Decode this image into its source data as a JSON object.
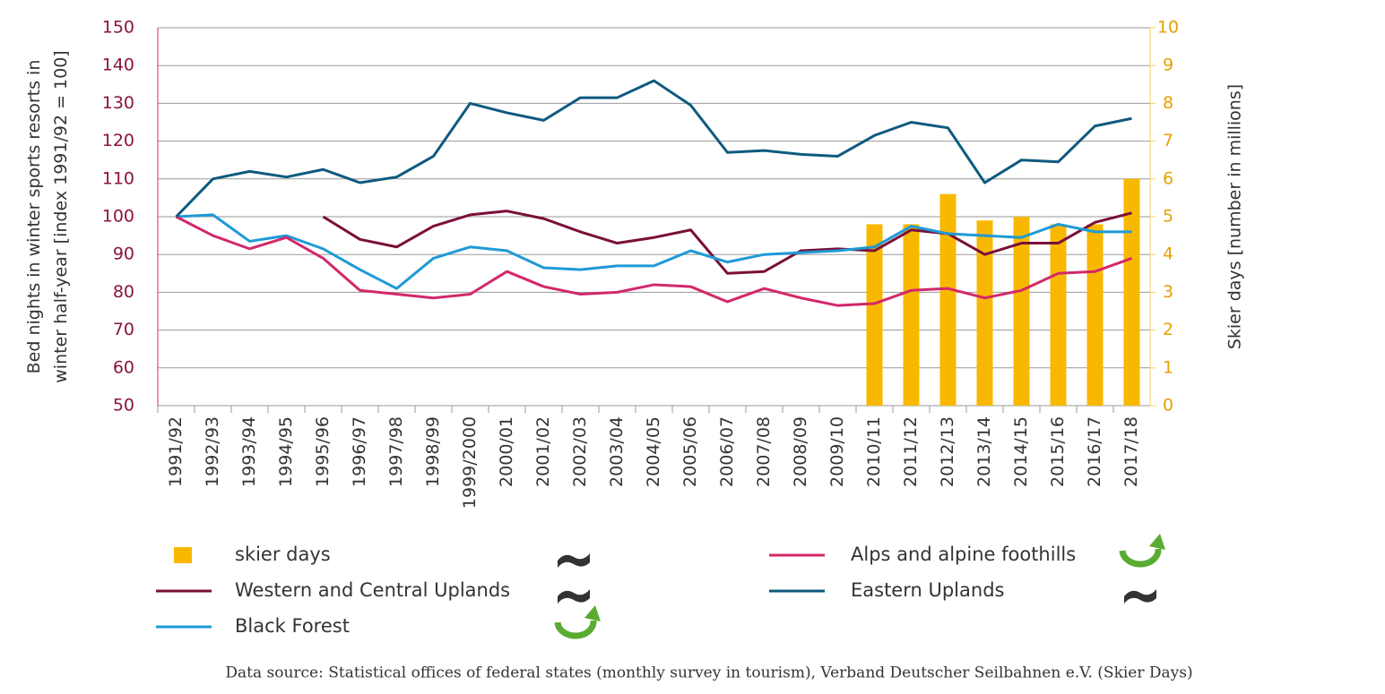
{
  "chart_data": {
    "type": "line",
    "ylabel": [
      "Bed nights in winter sports resorts in",
      "winter half-year [index 1991/92 = 100]"
    ],
    "y2label": "Skier days [number in millions]",
    "source": "Data source: Statistical offices of federal states (monthly survey in tourism), Verband Deutscher Seilbahnen e.V. (Skier Days)",
    "categories": [
      "1991/92",
      "1992/93",
      "1993/94",
      "1994/95",
      "1995/96",
      "1996/97",
      "1997/98",
      "1998/99",
      "1999/2000",
      "2000/01",
      "2001/02",
      "2002/03",
      "2003/04",
      "2004/05",
      "2005/06",
      "2006/07",
      "2007/08",
      "2008/09",
      "2009/10",
      "2010/11",
      "2011/12",
      "2012/13",
      "2013/14",
      "2014/15",
      "2015/16",
      "2016/17",
      "2017/18"
    ],
    "ylim": [
      50,
      150
    ],
    "yticks": [
      50,
      60,
      70,
      80,
      90,
      100,
      110,
      120,
      130,
      140,
      150
    ],
    "y2lim": [
      0,
      10
    ],
    "y2ticks": [
      0,
      1,
      2,
      3,
      4,
      5,
      6,
      7,
      8,
      9,
      10
    ],
    "grid": true,
    "series": [
      {
        "name": "skier days",
        "type": "bar",
        "axis": "y2",
        "color": "#f9b800",
        "values": [
          null,
          null,
          null,
          null,
          null,
          null,
          null,
          null,
          null,
          null,
          null,
          null,
          null,
          null,
          null,
          null,
          null,
          null,
          null,
          4.8,
          4.8,
          5.6,
          4.9,
          5.0,
          4.8,
          4.8,
          6.0
        ]
      },
      {
        "name": "Western and Central  Uplands",
        "type": "line",
        "color": "#7a0f3a",
        "values": [
          null,
          null,
          null,
          null,
          100,
          94,
          92,
          97.5,
          100.5,
          101.5,
          99.5,
          96,
          93,
          94.5,
          96.5,
          85,
          85.5,
          91,
          91.5,
          91,
          96.5,
          95.5,
          90,
          93,
          93,
          98.5,
          101
        ]
      },
      {
        "name": "Black Forest",
        "type": "line",
        "color": "#1e9ad6",
        "values": [
          100,
          100.5,
          93.5,
          95,
          91.5,
          86,
          81,
          89,
          92,
          91,
          86.5,
          86,
          87,
          87,
          91,
          88,
          90,
          90.5,
          91,
          92,
          97.5,
          95.5,
          95,
          94.5,
          98,
          96,
          96
        ]
      },
      {
        "name": "Alps and alpine foothills",
        "type": "line",
        "color": "#d3286a",
        "values": [
          100,
          95,
          91.5,
          94.5,
          89,
          80.5,
          79.5,
          78.5,
          79.5,
          85.5,
          81.5,
          79.5,
          80,
          82,
          81.5,
          77.5,
          81,
          78.5,
          76.5,
          77,
          80.5,
          81,
          78.5,
          80.5,
          85,
          85.5,
          89
        ]
      },
      {
        "name": "Eastern Uplands",
        "type": "line",
        "color": "#0e5a7e",
        "values": [
          100,
          110,
          112,
          110.5,
          112.5,
          109,
          110.5,
          116,
          130,
          127.5,
          125.5,
          131.5,
          131.5,
          136,
          129.5,
          117,
          117.5,
          116.5,
          116,
          121.5,
          125,
          123.5,
          109,
          115,
          114.5,
          124,
          126
        ]
      }
    ]
  }
}
